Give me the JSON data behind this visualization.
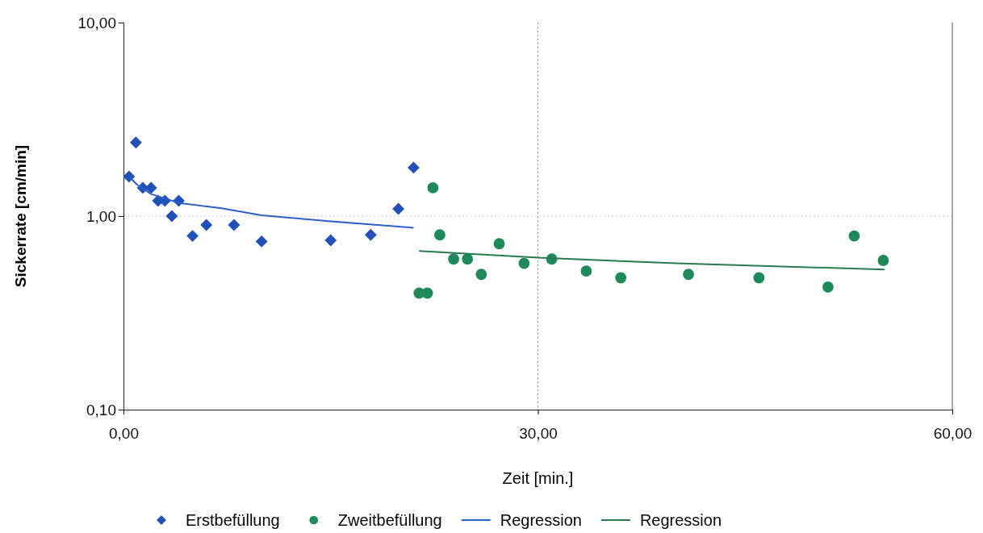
{
  "chart_data": {
    "type": "scatter",
    "xlabel": "Zeit [min.]",
    "ylabel": "Sickerrate [cm/min]",
    "xlim": [
      0,
      60
    ],
    "xticks": [
      {
        "value": 0,
        "label": "0,00"
      },
      {
        "value": 30,
        "label": "30,00"
      },
      {
        "value": 60,
        "label": "60,00"
      }
    ],
    "ylim": [
      0.1,
      10
    ],
    "yticks": [
      {
        "value": 0.1,
        "label": "0,10"
      },
      {
        "value": 1,
        "label": "1,00"
      },
      {
        "value": 10,
        "label": "10,00"
      }
    ],
    "log": "y",
    "legend": "bottom",
    "ref_lines": [
      {
        "axis": "y",
        "value": 1,
        "color": "#c8c8c8",
        "line_style": "dotted"
      },
      {
        "axis": "x",
        "value": 30,
        "color": "#999999",
        "line_style": "dotted"
      }
    ],
    "series": [
      {
        "name": "Erstbefüllung",
        "marker": "diamond",
        "color": "#2050b8",
        "x": [
          0.4,
          0.9,
          1.4,
          2.0,
          2.5,
          3.0,
          3.5,
          4.0,
          5.0,
          6.0,
          8.0,
          10.0,
          15.0,
          17.9,
          19.9,
          21.0
        ],
        "values": [
          1.6,
          2.4,
          1.4,
          1.4,
          1.2,
          1.2,
          1.0,
          1.2,
          0.79,
          0.9,
          0.9,
          0.74,
          0.75,
          0.8,
          1.09,
          1.78
        ]
      },
      {
        "name": "Zweitbefüllung",
        "marker": "circle",
        "color": "#1e8a5a",
        "x": [
          21.4,
          22.0,
          22.4,
          22.9,
          23.9,
          24.9,
          25.9,
          27.2,
          29.0,
          31.0,
          33.5,
          36.0,
          40.9,
          46.0,
          51.0,
          52.9,
          55.0
        ],
        "values": [
          0.4,
          0.4,
          1.4,
          0.8,
          0.6,
          0.6,
          0.5,
          0.72,
          0.57,
          0.6,
          0.52,
          0.48,
          0.5,
          0.48,
          0.43,
          0.79,
          0.59
        ]
      },
      {
        "name": "Regression",
        "type": "line",
        "marker": "none",
        "color": "#2a5fcc",
        "x": [
          0.4,
          1,
          2,
          4,
          7,
          10,
          15,
          21
        ],
        "values": [
          1.6,
          1.45,
          1.3,
          1.17,
          1.1,
          1.01,
          0.94,
          0.87
        ]
      },
      {
        "name": "Regression",
        "type": "line",
        "marker": "none",
        "color": "#2a7a50",
        "x": [
          21.4,
          30,
          40,
          55.1
        ],
        "values": [
          0.66,
          0.61,
          0.57,
          0.53
        ]
      }
    ]
  }
}
